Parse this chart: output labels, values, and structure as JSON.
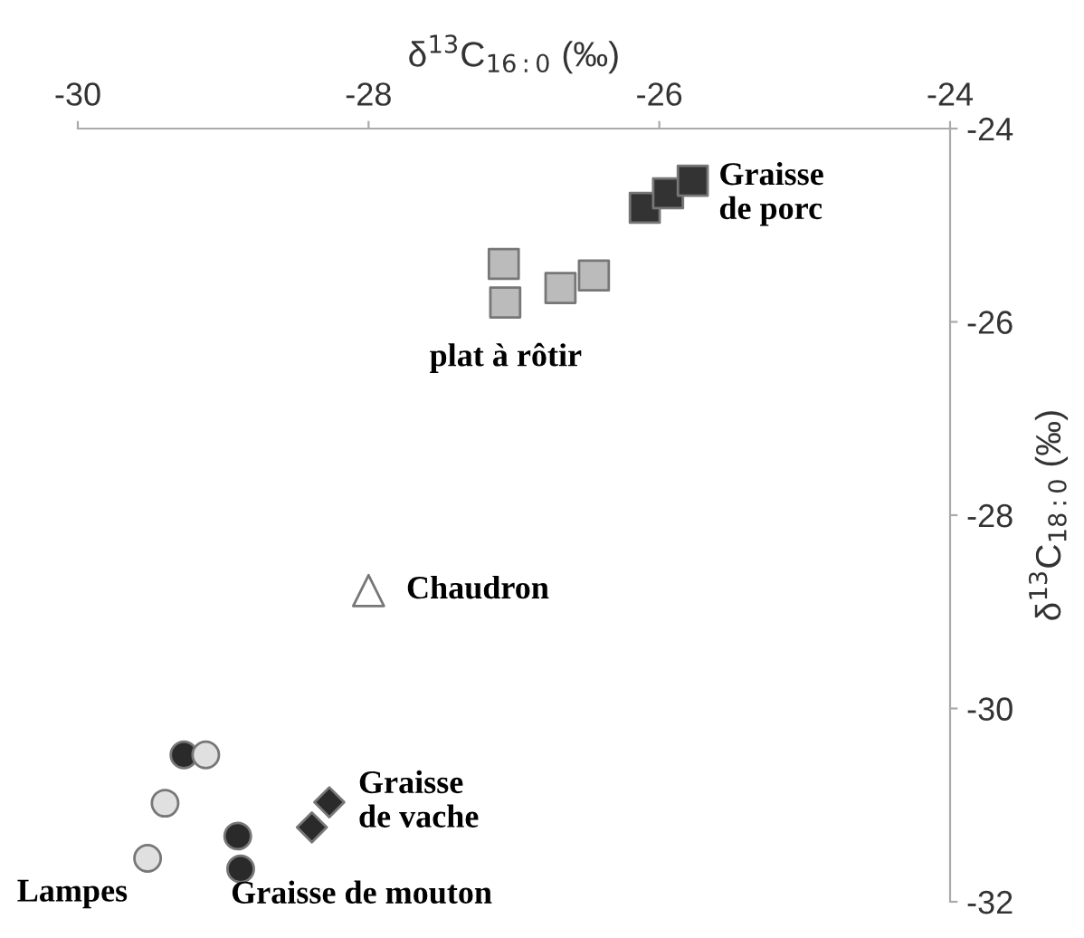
{
  "chart_data": {
    "type": "scatter",
    "xlabel": "δ$^{13}$C$_{16:0}$ (‰)",
    "ylabel": "δ$^{13}$C$_{18:0}$ (‰)",
    "xlim": [
      -30,
      -24
    ],
    "xticks": [
      -30,
      -28,
      -26,
      -24
    ],
    "ylim": [
      -32,
      -24
    ],
    "yticks": [
      -24,
      -26,
      -28,
      -30,
      -32
    ],
    "grid": false,
    "series": [
      {
        "name": "Graisse\nde porc",
        "color": "#333333",
        "marker": "square",
        "x": [
          -26.1,
          -25.94,
          -25.77
        ],
        "values": [
          -24.82,
          -24.67,
          -24.54
        ]
      },
      {
        "name": "plat à rôtir",
        "color": "#bbbbbb",
        "marker": "square",
        "x": [
          -27.07,
          -27.06,
          -26.68,
          -26.45
        ],
        "values": [
          -25.4,
          -25.8,
          -25.65,
          -25.52
        ]
      },
      {
        "name": "Chaudron",
        "color": "#ffffff",
        "marker": "triangle",
        "x": [
          -28.0
        ],
        "values": [
          -28.78
        ]
      },
      {
        "name": "Graisse\nde vache",
        "color": "#2a2a2a",
        "marker": "diamond",
        "x": [
          -28.27,
          -28.39
        ],
        "values": [
          -30.97,
          -31.23
        ]
      },
      {
        "name": "Graisse de mouton",
        "color": "#2a2a2a",
        "marker": "circle",
        "x": [
          -29.27,
          -28.9,
          -28.88
        ],
        "values": [
          -30.48,
          -31.32,
          -31.66
        ]
      },
      {
        "name": "Lampes",
        "color": "#e0e0e0",
        "marker": "circle",
        "x": [
          -29.12,
          -29.4,
          -29.52
        ],
        "values": [
          -30.48,
          -30.98,
          -31.55
        ]
      }
    ]
  }
}
